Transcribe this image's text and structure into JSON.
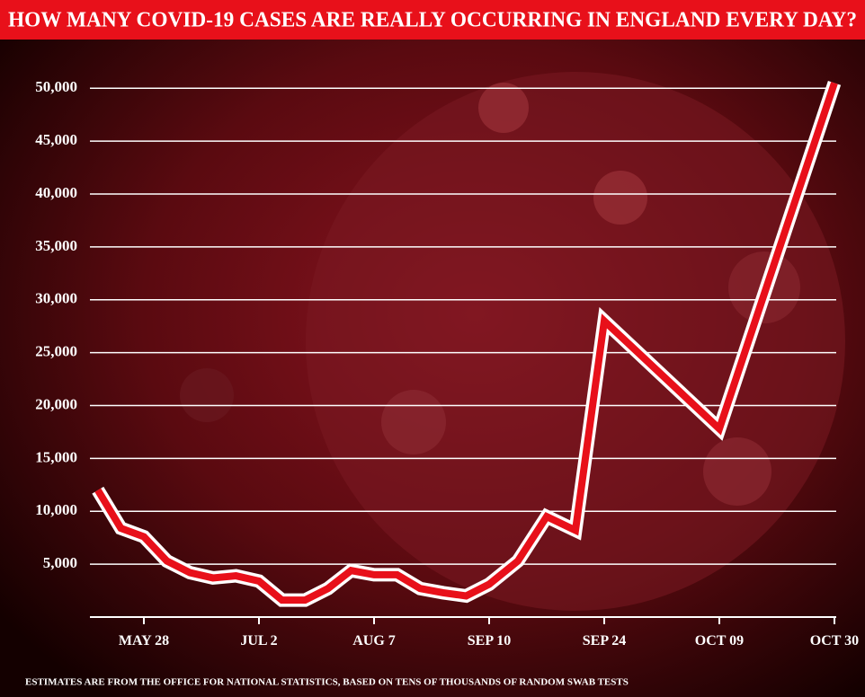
{
  "chart_data": {
    "type": "line",
    "title": "HOW MANY COVID-19 CASES ARE REALLY OCCURRING IN ENGLAND EVERY DAY?",
    "note": "ESTIMATES ARE FROM THE OFFICE FOR NATIONAL STATISTICS, BASED ON TENS OF THOUSANDS OF RANDOM SWAB TESTS",
    "categories": [
      null,
      null,
      "MAY 28",
      null,
      null,
      null,
      null,
      "JUL 2",
      null,
      null,
      null,
      null,
      "AUG 7",
      null,
      null,
      null,
      null,
      "SEP 10",
      null,
      null,
      null,
      "SEP 24",
      "OCT 09",
      "OCT 30"
    ],
    "values": [
      12000,
      8400,
      7600,
      5300,
      4200,
      3700,
      3900,
      3400,
      1600,
      1600,
      2700,
      4400,
      4000,
      4000,
      2700,
      2300,
      2000,
      3100,
      5300,
      9500,
      8200,
      28000,
      17800,
      50500
    ],
    "color": "#e8101a",
    "ylim": [
      0,
      53500
    ],
    "yticks": [
      {
        "value": 5000,
        "label": "5,000"
      },
      {
        "value": 10000,
        "label": "10,000"
      },
      {
        "value": 15000,
        "label": "15,000"
      },
      {
        "value": 20000,
        "label": "20,000"
      },
      {
        "value": 25000,
        "label": "25,000"
      },
      {
        "value": 30000,
        "label": "30,000"
      },
      {
        "value": 35000,
        "label": "35,000"
      },
      {
        "value": 40000,
        "label": "40,000"
      },
      {
        "value": 45000,
        "label": "45,000"
      },
      {
        "value": 50000,
        "label": "50,000"
      }
    ],
    "grid": true
  }
}
